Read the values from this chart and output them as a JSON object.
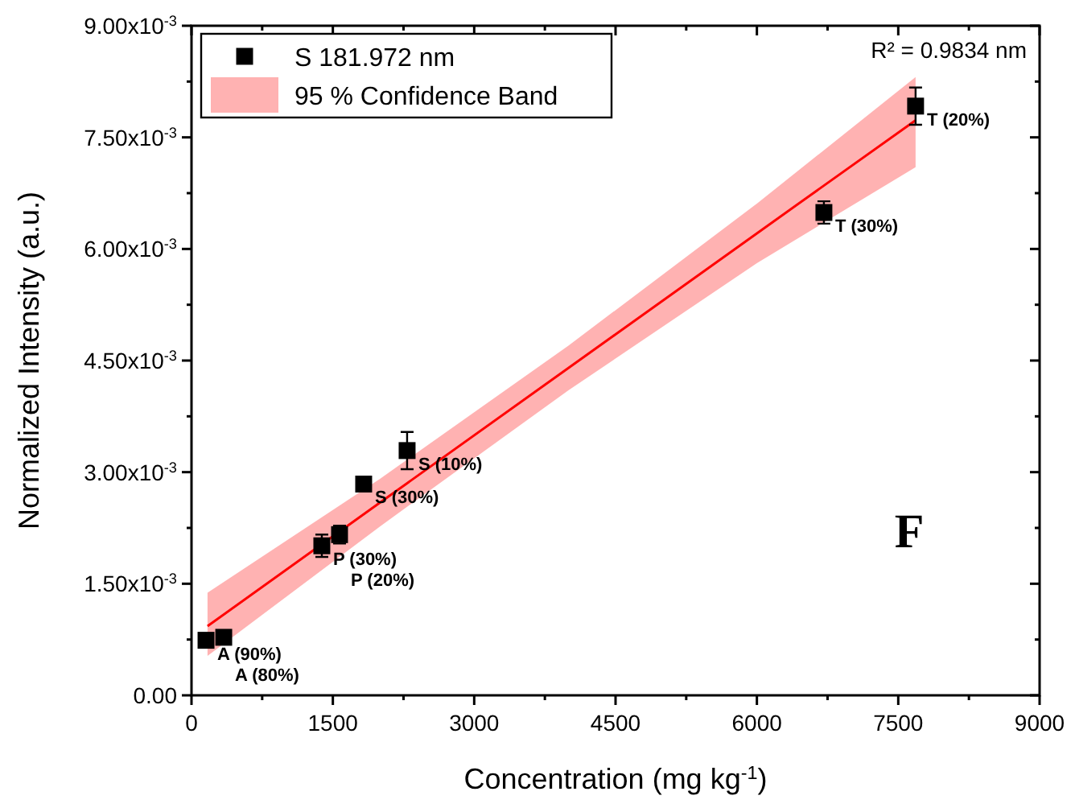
{
  "chart_data": {
    "type": "scatter",
    "xlabel": "Concentration (mg kg$^{-1}$)",
    "ylabel": "Normalized Intensity (a.u.)",
    "xlim": [
      0,
      9000
    ],
    "ylim": [
      0,
      0.009
    ],
    "xticks": [
      0,
      {
        "value": 750,
        "label": null
      },
      1500,
      {
        "value": 2250,
        "label": null
      },
      3000,
      {
        "value": 3750,
        "label": null
      },
      4500,
      {
        "value": 5250,
        "label": null
      },
      6000,
      {
        "value": 6750,
        "label": null
      },
      7500,
      {
        "value": 8250,
        "label": null
      },
      9000
    ],
    "yticks": [
      {
        "value": 0,
        "label": "0.00"
      },
      {
        "value": 0.00075,
        "label": null
      },
      {
        "value": 0.0015,
        "label": "1.50x10$^{-3}$"
      },
      {
        "value": 0.00225,
        "label": null
      },
      {
        "value": 0.003,
        "label": "3.00x10$^{-3}$"
      },
      {
        "value": 0.00375,
        "label": null
      },
      {
        "value": 0.0045,
        "label": "4.50x10$^{-3}$"
      },
      {
        "value": 0.00525,
        "label": null
      },
      {
        "value": 0.006,
        "label": "6.00x10$^{-3}$"
      },
      {
        "value": 0.00675,
        "label": null
      },
      {
        "value": 0.0075,
        "label": "7.50x10$^{-3}$"
      },
      {
        "value": 0.00825,
        "label": null
      },
      {
        "value": 0.009,
        "label": "9.00x10$^{-3}$"
      }
    ],
    "legend": "top left",
    "grid": false,
    "series": [
      {
        "name": "S 181.972 nm",
        "marker": "square",
        "color": "#000000",
        "x": [
          154,
          342,
          1383,
          1571,
          1827,
          2288,
          6711,
          7684
        ],
        "values": [
          0.00074,
          0.00078,
          0.00201,
          0.00216,
          0.00284,
          0.00329,
          0.00649,
          0.00792
        ],
        "errors": [
          null,
          null,
          0.00015,
          0.00012,
          null,
          0.00025,
          0.00015,
          0.00025
        ]
      },
      {
        "type": "line",
        "marker": "none",
        "name": "95 % Confidence Band",
        "color": "#ff0000",
        "x": [
          170,
          2000,
          4000,
          6000,
          7684
        ],
        "values": [
          0.00093,
          0.00259,
          0.0044,
          0.00621,
          0.00773
        ],
        "lower": [
          0.00053,
          0.00227,
          0.0041,
          0.00581,
          0.0071
        ],
        "upper": [
          0.00138,
          0.00291,
          0.0047,
          0.00661,
          0.00831
        ]
      }
    ],
    "annotations": [
      {
        "text": "A (90%)",
        "x": 154,
        "y": 0.00074
      },
      {
        "text": "A (80%)",
        "x": 342,
        "y": 0.00078
      },
      {
        "text": "P (30%)",
        "x": 1383,
        "y": 0.00201
      },
      {
        "text": "P (20%)",
        "x": 1571,
        "y": 0.00216
      },
      {
        "text": "S (30%)",
        "x": 1827,
        "y": 0.00284
      },
      {
        "text": "S (10%)",
        "x": 2288,
        "y": 0.00329
      },
      {
        "text": "T (30%)",
        "x": 6711,
        "y": 0.00649
      },
      {
        "text": "T (20%)",
        "x": 7684,
        "y": 0.00792
      },
      "R² = 0.9834 nm",
      "F"
    ]
  }
}
